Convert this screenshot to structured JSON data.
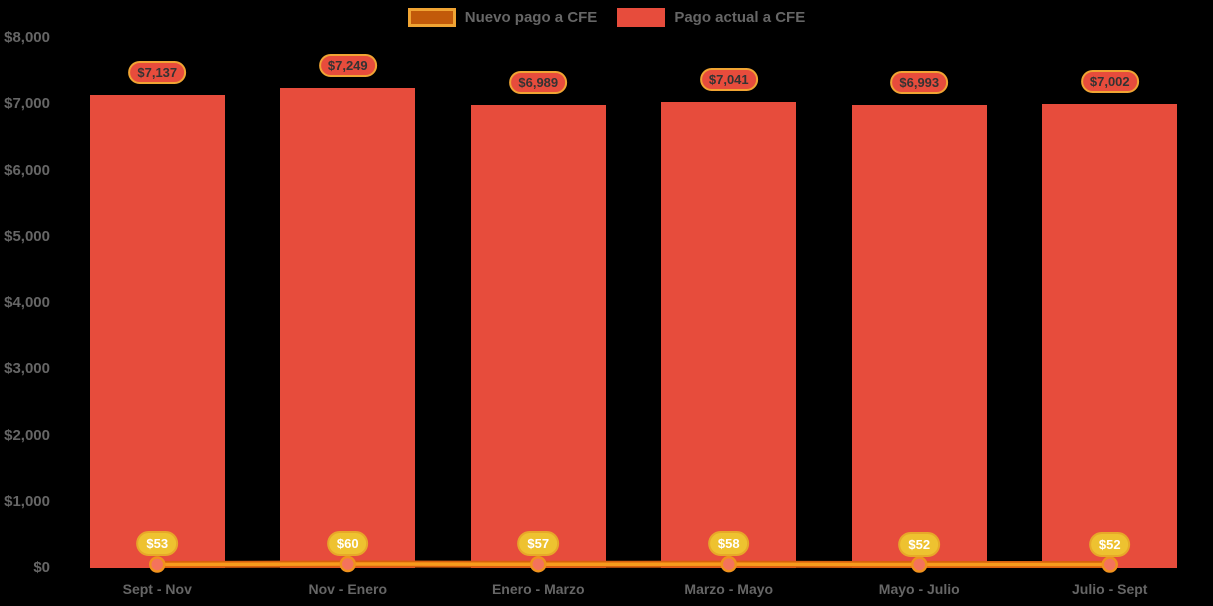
{
  "legend": {
    "items": [
      {
        "label": "Nuevo pago a CFE",
        "swatch_fill": "#c25a0a",
        "swatch_border": "#f0a433"
      },
      {
        "label": "Pago actual a CFE",
        "swatch_fill": "#e74c3c",
        "swatch_border": "#e74c3c"
      }
    ]
  },
  "axes": {
    "y_tick_labels": [
      "$0",
      "$1,000",
      "$2,000",
      "$3,000",
      "$4,000",
      "$5,000",
      "$6,000",
      "$7,000",
      "$8,000"
    ],
    "x_tick_labels": [
      "Sept - Nov",
      "Nov - Enero",
      "Enero - Marzo",
      "Marzo - Mayo",
      "Mayo - Julio",
      "Julio - Sept"
    ]
  },
  "chart_data": {
    "type": "bar",
    "categories": [
      "Sept - Nov",
      "Nov - Enero",
      "Enero - Marzo",
      "Marzo - Mayo",
      "Mayo - Julio",
      "Julio - Sept"
    ],
    "series": [
      {
        "name": "Pago actual a CFE",
        "type": "bar",
        "color": "#e74c3c",
        "values": [
          7137,
          7249,
          6989,
          7041,
          6993,
          7002
        ],
        "data_labels": [
          "$7,137",
          "$7,249",
          "$6,989",
          "$7,041",
          "$6,993",
          "$7,002"
        ]
      },
      {
        "name": "Nuevo pago a CFE",
        "type": "line",
        "color": "#f6921e",
        "values": [
          53,
          60,
          57,
          58,
          52,
          52
        ],
        "data_labels": [
          "$53",
          "$60",
          "$57",
          "$58",
          "$52",
          "$52"
        ]
      }
    ],
    "ylim": [
      0,
      8000
    ],
    "ytick_step": 1000,
    "grid": false,
    "legend_position": "top-center",
    "background": "#000000"
  },
  "styles": {
    "bar_label_pill": {
      "fill": "#e74c3c",
      "border": "#f0a433",
      "text": "#333333"
    },
    "line_label_pill": {
      "fill": "#eec230",
      "border": "#e7a829",
      "text": "#ffffff"
    },
    "line": {
      "core": "#f89b1c",
      "edge": "#d9610e"
    },
    "marker": {
      "fill": "#f4735c",
      "stroke": "#f0921e"
    },
    "axis_text": "#666666"
  }
}
